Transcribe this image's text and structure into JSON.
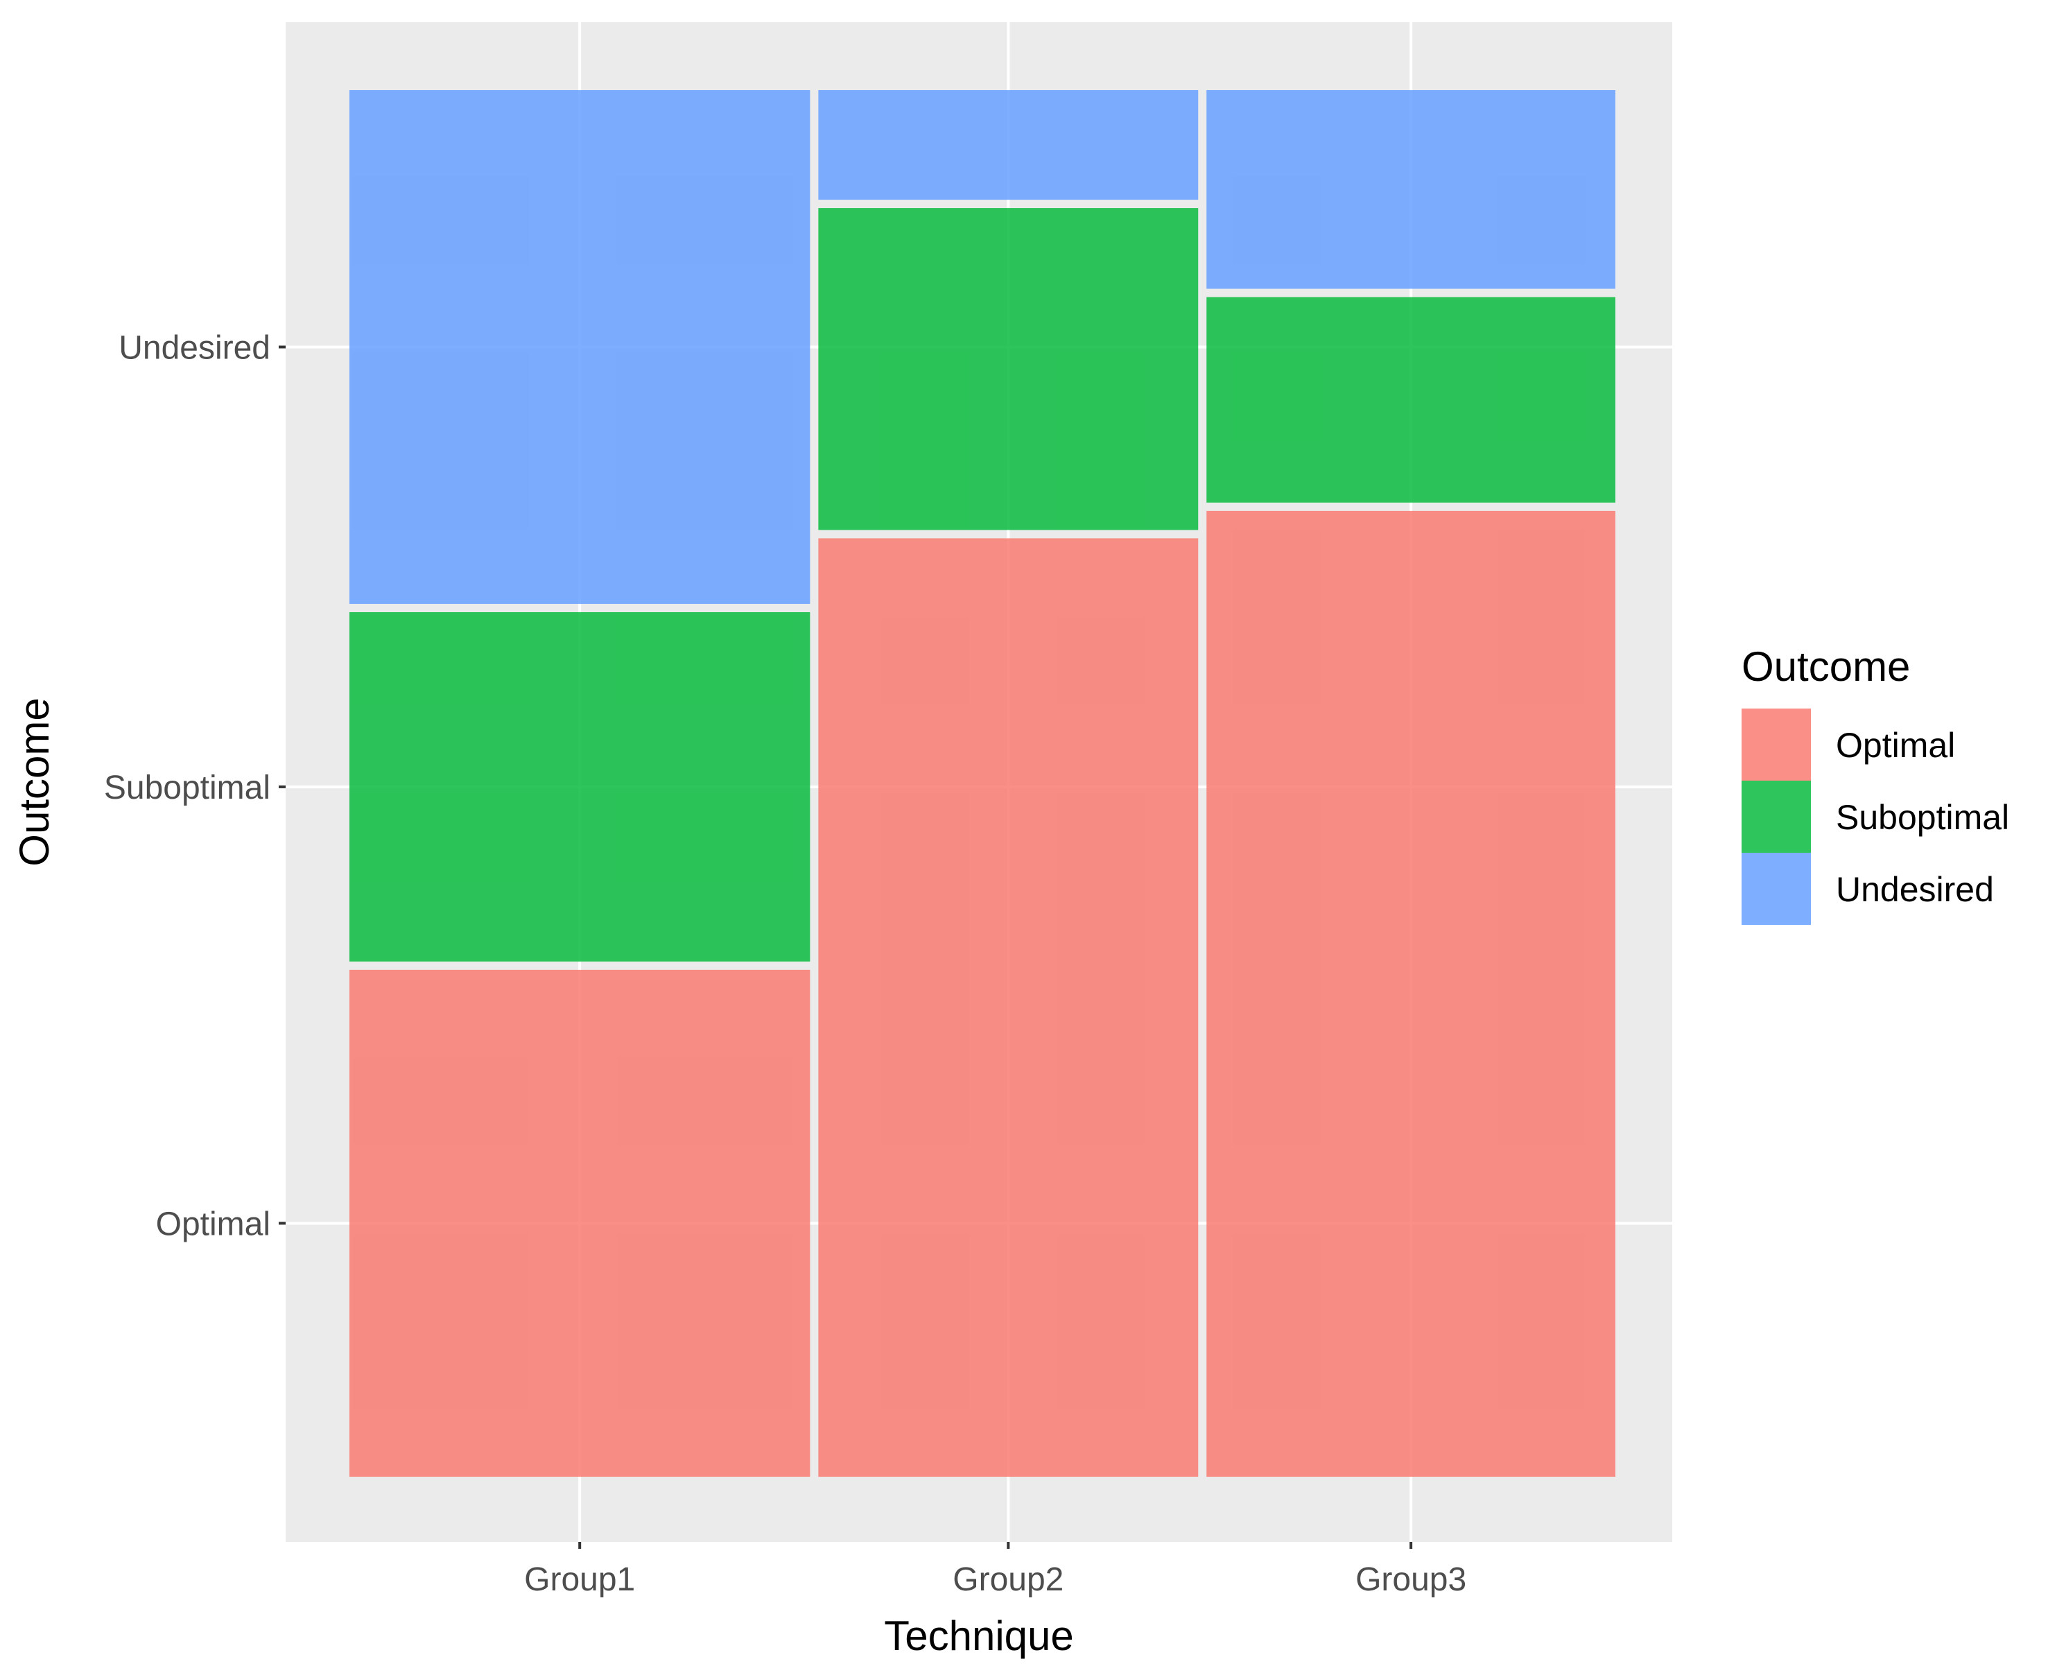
{
  "chart_data": {
    "type": "mosaic",
    "title": "",
    "xlabel": "Technique",
    "ylabel": "Outcome",
    "categories": [
      "Group1",
      "Group2",
      "Group3"
    ],
    "category_widths": [
      0.365,
      0.301,
      0.324
    ],
    "y_tick_labels": [
      "Optimal",
      "Suboptimal",
      "Undesired"
    ],
    "series": [
      {
        "name": "Optimal",
        "color": "#F8766D",
        "values": [
          0.37,
          0.685,
          0.705
        ]
      },
      {
        "name": "Suboptimal",
        "color": "#00BA38",
        "values": [
          0.255,
          0.235,
          0.15
        ]
      },
      {
        "name": "Undesired",
        "color": "#619CFF",
        "values": [
          0.375,
          0.08,
          0.145
        ]
      }
    ],
    "legend": {
      "title": "Outcome",
      "position": "right"
    },
    "grid": true,
    "colors": {
      "panel_background": "#EBEBEB",
      "grid": "#FFFFFF",
      "tick": "#333333"
    }
  }
}
